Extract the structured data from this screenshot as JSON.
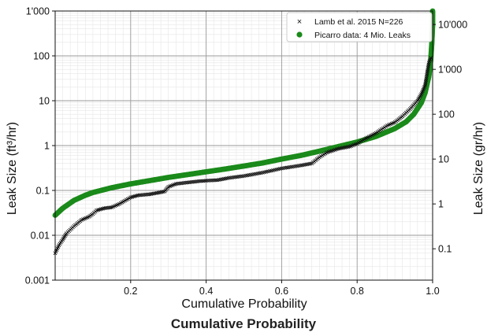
{
  "caption": "Cumulative Probability",
  "chart_data": {
    "type": "scatter",
    "xlabel": "Cumulative Probability",
    "ylabel_left": "Leak Size (ft³/hr)",
    "ylabel_right": "Leak Size (gr/hr)",
    "xlim": [
      0,
      1
    ],
    "ylim": [
      0.001,
      1000
    ],
    "yscale": "log",
    "ylim_right": [
      0.02,
      20000
    ],
    "yscale_right": "log",
    "grid": true,
    "legend_position": "top-right",
    "x_ticks": [
      {
        "value": 0.2,
        "label": "0.2"
      },
      {
        "value": 0.4,
        "label": "0.4"
      },
      {
        "value": 0.6,
        "label": "0.6"
      },
      {
        "value": 0.8,
        "label": "0.8"
      },
      {
        "value": 1.0,
        "label": "1.0"
      }
    ],
    "y_ticks_left": [
      {
        "value": 0.001,
        "label": "0.001"
      },
      {
        "value": 0.01,
        "label": "0.01"
      },
      {
        "value": 0.1,
        "label": "0.1"
      },
      {
        "value": 1,
        "label": "1"
      },
      {
        "value": 10,
        "label": "10"
      },
      {
        "value": 100,
        "label": "100"
      },
      {
        "value": 1000,
        "label": "1'000"
      }
    ],
    "y_ticks_right": [
      {
        "value": 0.1,
        "label": "0.1"
      },
      {
        "value": 1,
        "label": "1"
      },
      {
        "value": 10,
        "label": "10"
      },
      {
        "value": 100,
        "label": "100"
      },
      {
        "value": 1000,
        "label": "1'000"
      },
      {
        "value": 10000,
        "label": "10'000"
      }
    ],
    "series": [
      {
        "name": "Lamb et al. 2015 N=226",
        "marker": "x",
        "color": "#111111",
        "points": [
          [
            0.0,
            0.004
          ],
          [
            0.01,
            0.006
          ],
          [
            0.02,
            0.008
          ],
          [
            0.03,
            0.011
          ],
          [
            0.05,
            0.016
          ],
          [
            0.07,
            0.022
          ],
          [
            0.09,
            0.026
          ],
          [
            0.1,
            0.03
          ],
          [
            0.11,
            0.036
          ],
          [
            0.13,
            0.04
          ],
          [
            0.15,
            0.042
          ],
          [
            0.17,
            0.05
          ],
          [
            0.2,
            0.07
          ],
          [
            0.22,
            0.078
          ],
          [
            0.25,
            0.082
          ],
          [
            0.27,
            0.088
          ],
          [
            0.29,
            0.095
          ],
          [
            0.3,
            0.12
          ],
          [
            0.32,
            0.14
          ],
          [
            0.35,
            0.15
          ],
          [
            0.38,
            0.16
          ],
          [
            0.4,
            0.165
          ],
          [
            0.43,
            0.17
          ],
          [
            0.46,
            0.19
          ],
          [
            0.5,
            0.21
          ],
          [
            0.55,
            0.25
          ],
          [
            0.6,
            0.31
          ],
          [
            0.65,
            0.36
          ],
          [
            0.68,
            0.4
          ],
          [
            0.7,
            0.55
          ],
          [
            0.72,
            0.7
          ],
          [
            0.75,
            0.85
          ],
          [
            0.78,
            0.95
          ],
          [
            0.8,
            1.1
          ],
          [
            0.82,
            1.4
          ],
          [
            0.85,
            1.9
          ],
          [
            0.88,
            2.8
          ],
          [
            0.9,
            3.3
          ],
          [
            0.92,
            4.5
          ],
          [
            0.94,
            6.5
          ],
          [
            0.96,
            10
          ],
          [
            0.97,
            14
          ],
          [
            0.98,
            22
          ],
          [
            0.99,
            70
          ],
          [
            0.995,
            90
          ]
        ]
      },
      {
        "name": "Picarro data: 4 Mio. Leaks",
        "marker": "o",
        "color": "#1a8a1a",
        "points": [
          [
            0.0,
            0.028
          ],
          [
            0.02,
            0.04
          ],
          [
            0.05,
            0.06
          ],
          [
            0.08,
            0.078
          ],
          [
            0.1,
            0.09
          ],
          [
            0.15,
            0.115
          ],
          [
            0.2,
            0.14
          ],
          [
            0.25,
            0.165
          ],
          [
            0.3,
            0.195
          ],
          [
            0.35,
            0.225
          ],
          [
            0.4,
            0.26
          ],
          [
            0.45,
            0.3
          ],
          [
            0.5,
            0.35
          ],
          [
            0.55,
            0.41
          ],
          [
            0.6,
            0.5
          ],
          [
            0.65,
            0.6
          ],
          [
            0.7,
            0.75
          ],
          [
            0.75,
            0.95
          ],
          [
            0.8,
            1.2
          ],
          [
            0.85,
            1.6
          ],
          [
            0.9,
            2.4
          ],
          [
            0.93,
            3.4
          ],
          [
            0.95,
            5
          ],
          [
            0.97,
            9
          ],
          [
            0.98,
            15
          ],
          [
            0.99,
            35
          ],
          [
            0.995,
            80
          ],
          [
            0.998,
            200
          ],
          [
            1.0,
            500
          ],
          [
            1.0,
            1000
          ]
        ]
      }
    ]
  }
}
